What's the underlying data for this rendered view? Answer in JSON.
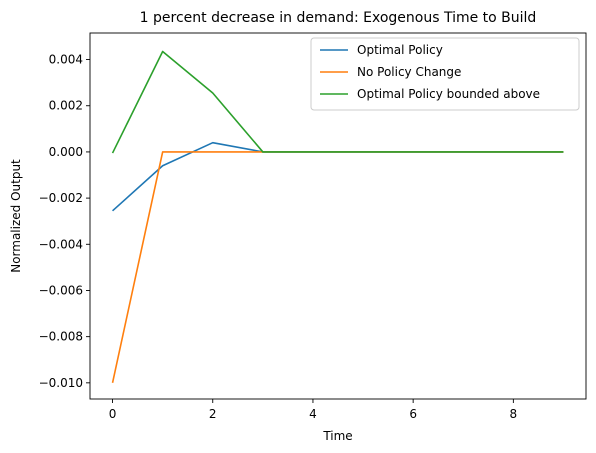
{
  "chart_data": {
    "type": "line",
    "title": "1 percent decrease in demand: Exogenous Time to Build",
    "xlabel": "Time",
    "ylabel": "Normalized Output",
    "xlim": [
      -0.45,
      9.45
    ],
    "ylim": [
      -0.0107,
      0.00515
    ],
    "xticks": [
      0,
      2,
      4,
      6,
      8
    ],
    "xtick_labels": [
      "0",
      "2",
      "4",
      "6",
      "8"
    ],
    "yticks": [
      -0.01,
      -0.008,
      -0.006,
      -0.004,
      -0.002,
      0.0,
      0.002,
      0.004
    ],
    "ytick_labels": [
      "−0.010",
      "−0.008",
      "−0.006",
      "−0.004",
      "−0.002",
      "0.000",
      "0.002",
      "0.004"
    ],
    "grid": false,
    "legend_position": "top-right",
    "x": [
      0,
      1,
      2,
      3,
      4,
      5,
      6,
      7,
      8,
      9
    ],
    "series": [
      {
        "name": "Optimal Policy",
        "color": "#1f77b4",
        "values": [
          -0.00255,
          -0.0006,
          0.0004,
          0.0,
          0.0,
          0.0,
          0.0,
          0.0,
          0.0,
          0.0
        ]
      },
      {
        "name": "No Policy Change",
        "color": "#ff7f0e",
        "values": [
          -0.01,
          0.0,
          0.0,
          0.0,
          0.0,
          0.0,
          0.0,
          0.0,
          0.0,
          0.0
        ]
      },
      {
        "name": "Optimal Policy bounded above",
        "color": "#2ca02c",
        "values": [
          -5e-05,
          0.00435,
          0.00255,
          0.0,
          0.0,
          0.0,
          0.0,
          0.0,
          0.0,
          0.0
        ]
      }
    ]
  }
}
